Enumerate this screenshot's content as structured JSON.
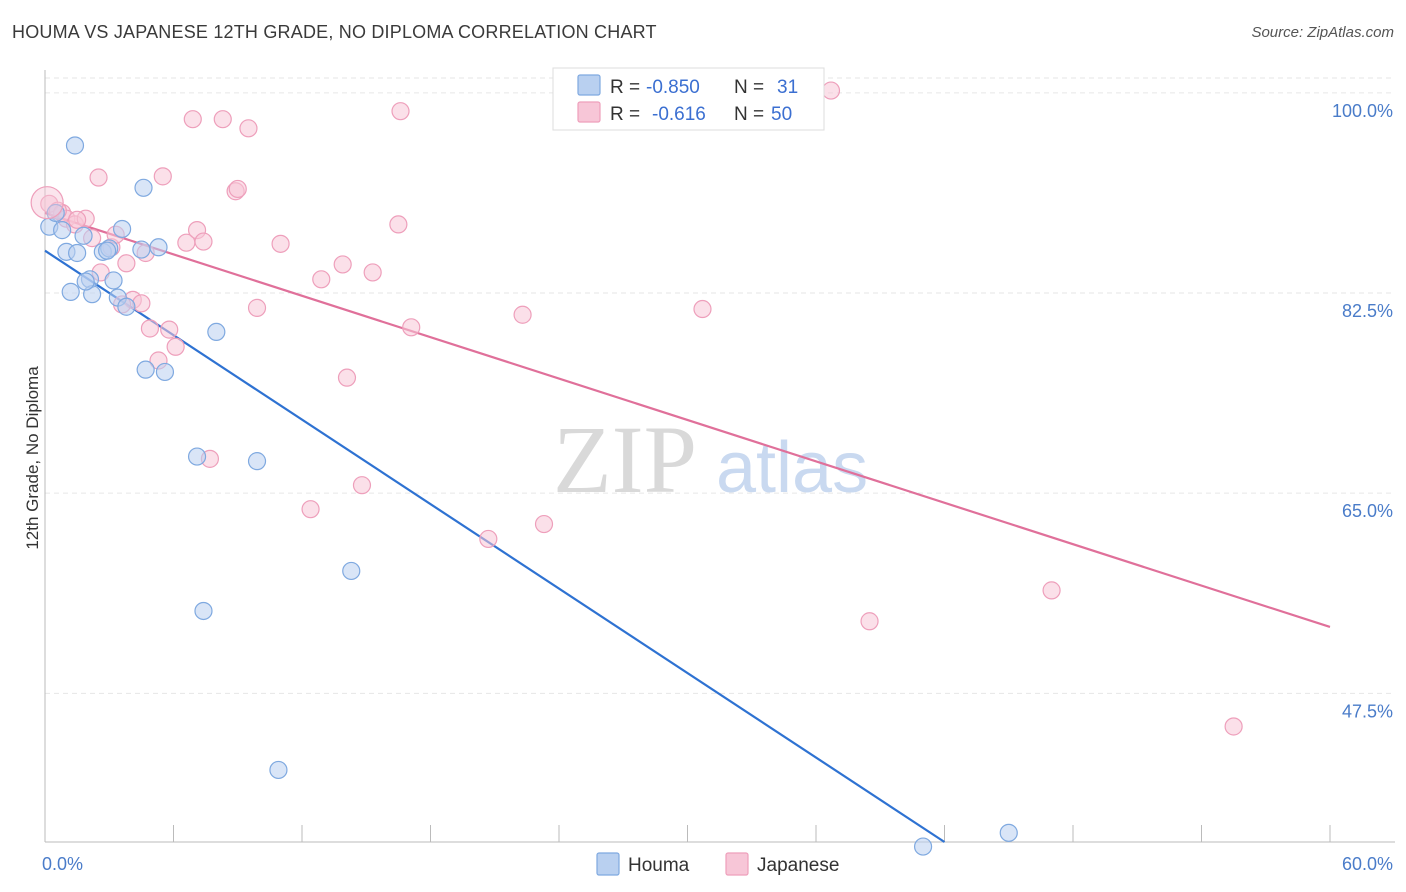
{
  "title": "HOUMA VS JAPANESE 12TH GRADE, NO DIPLOMA CORRELATION CHART",
  "source": "Source: ZipAtlas.com",
  "watermark": {
    "zip": "ZIP",
    "atlas": "atlas"
  },
  "colors": {
    "houma": "#7fa9e0",
    "houma_fill": "#b9d0f0",
    "houma_line": "#2e72d2",
    "japanese": "#ee9fbb",
    "japanese_fill": "#f7c6d7",
    "japanese_line": "#e0709a",
    "grid": "#e6e6e6",
    "axis_label": "#4a7cc9"
  },
  "legend": {
    "rows": [
      {
        "r_label": "R =",
        "r_value": "-0.850",
        "n_label": "N =",
        "n_value": "31"
      },
      {
        "r_label": "R =",
        "r_value": "-0.616",
        "n_label": "N =",
        "n_value": "50"
      }
    ]
  },
  "chart_data": {
    "type": "scatter",
    "title": "HOUMA VS JAPANESE 12TH GRADE, NO DIPLOMA CORRELATION CHART",
    "xlabel": "",
    "ylabel": "12th Grade, No Diploma",
    "xlim": [
      0,
      60
    ],
    "ylim": [
      34.5,
      102
    ],
    "x_tick_labels": [
      "0.0%",
      "60.0%"
    ],
    "y_ticks": [
      47.5,
      65.0,
      82.5,
      100.0
    ],
    "y_tick_labels": [
      "47.5%",
      "65.0%",
      "82.5%",
      "100.0%"
    ],
    "grid": true,
    "legend_position": "top-center",
    "series": [
      {
        "name": "Houma",
        "r": -0.85,
        "n": 31,
        "trend": {
          "x0": 0.0,
          "y0": 86.2,
          "x1": 42.0,
          "y1": 34.5
        },
        "points": [
          {
            "x": 0.2,
            "y": 88.3
          },
          {
            "x": 0.8,
            "y": 88.0
          },
          {
            "x": 1.4,
            "y": 95.4
          },
          {
            "x": 1.0,
            "y": 86.1
          },
          {
            "x": 1.5,
            "y": 86.0
          },
          {
            "x": 1.8,
            "y": 87.5
          },
          {
            "x": 1.2,
            "y": 82.6
          },
          {
            "x": 2.1,
            "y": 83.7
          },
          {
            "x": 2.2,
            "y": 82.4
          },
          {
            "x": 2.7,
            "y": 86.1
          },
          {
            "x": 3.0,
            "y": 86.4
          },
          {
            "x": 3.2,
            "y": 83.6
          },
          {
            "x": 3.6,
            "y": 88.1
          },
          {
            "x": 3.4,
            "y": 82.1
          },
          {
            "x": 3.8,
            "y": 81.3
          },
          {
            "x": 4.5,
            "y": 86.3
          },
          {
            "x": 5.3,
            "y": 86.5
          },
          {
            "x": 4.6,
            "y": 91.7
          },
          {
            "x": 4.7,
            "y": 75.8
          },
          {
            "x": 5.6,
            "y": 75.6
          },
          {
            "x": 8.0,
            "y": 79.1
          },
          {
            "x": 7.1,
            "y": 68.2
          },
          {
            "x": 9.9,
            "y": 67.8
          },
          {
            "x": 7.4,
            "y": 54.7
          },
          {
            "x": 10.9,
            "y": 40.8
          },
          {
            "x": 14.3,
            "y": 58.2
          },
          {
            "x": 41.0,
            "y": 34.1
          },
          {
            "x": 45.0,
            "y": 35.3
          },
          {
            "x": 0.5,
            "y": 89.5
          },
          {
            "x": 2.9,
            "y": 86.2
          },
          {
            "x": 1.9,
            "y": 83.5
          }
        ]
      },
      {
        "name": "Japanese",
        "r": -0.616,
        "n": 50,
        "trend": {
          "x0": 0.0,
          "y0": 89.5,
          "x1": 60.0,
          "y1": 53.3
        },
        "points": [
          {
            "x": 0.2,
            "y": 90.3
          },
          {
            "x": 0.8,
            "y": 89.5
          },
          {
            "x": 1.0,
            "y": 89.0
          },
          {
            "x": 1.4,
            "y": 88.5
          },
          {
            "x": 1.9,
            "y": 89.0
          },
          {
            "x": 2.5,
            "y": 92.6
          },
          {
            "x": 2.6,
            "y": 84.3
          },
          {
            "x": 3.1,
            "y": 86.5
          },
          {
            "x": 3.3,
            "y": 87.6
          },
          {
            "x": 3.8,
            "y": 85.1
          },
          {
            "x": 4.1,
            "y": 81.9
          },
          {
            "x": 4.5,
            "y": 81.6
          },
          {
            "x": 4.7,
            "y": 86.0
          },
          {
            "x": 4.9,
            "y": 79.4
          },
          {
            "x": 5.3,
            "y": 76.6
          },
          {
            "x": 5.5,
            "y": 92.7
          },
          {
            "x": 5.8,
            "y": 79.3
          },
          {
            "x": 6.1,
            "y": 77.8
          },
          {
            "x": 6.6,
            "y": 86.9
          },
          {
            "x": 6.9,
            "y": 97.7
          },
          {
            "x": 7.1,
            "y": 88.0
          },
          {
            "x": 7.4,
            "y": 87.0
          },
          {
            "x": 7.7,
            "y": 68.0
          },
          {
            "x": 8.3,
            "y": 97.7
          },
          {
            "x": 8.9,
            "y": 91.4
          },
          {
            "x": 9.0,
            "y": 91.6
          },
          {
            "x": 9.5,
            "y": 96.9
          },
          {
            "x": 9.9,
            "y": 81.2
          },
          {
            "x": 11.0,
            "y": 86.8
          },
          {
            "x": 12.4,
            "y": 63.6
          },
          {
            "x": 12.9,
            "y": 83.7
          },
          {
            "x": 13.9,
            "y": 85.0
          },
          {
            "x": 14.1,
            "y": 75.1
          },
          {
            "x": 14.8,
            "y": 65.7
          },
          {
            "x": 15.3,
            "y": 84.3
          },
          {
            "x": 16.5,
            "y": 88.5
          },
          {
            "x": 16.6,
            "y": 98.4
          },
          {
            "x": 17.1,
            "y": 79.5
          },
          {
            "x": 20.7,
            "y": 61.0
          },
          {
            "x": 22.3,
            "y": 80.6
          },
          {
            "x": 23.3,
            "y": 62.3
          },
          {
            "x": 30.7,
            "y": 81.1
          },
          {
            "x": 36.7,
            "y": 100.2
          },
          {
            "x": 38.5,
            "y": 53.8
          },
          {
            "x": 47.0,
            "y": 56.5
          },
          {
            "x": 55.5,
            "y": 44.6
          },
          {
            "x": 1.5,
            "y": 88.9
          },
          {
            "x": 0.6,
            "y": 89.7
          },
          {
            "x": 2.2,
            "y": 87.3
          },
          {
            "x": 3.6,
            "y": 81.5
          }
        ]
      }
    ]
  },
  "bottom_legend": [
    "Houma",
    "Japanese"
  ]
}
